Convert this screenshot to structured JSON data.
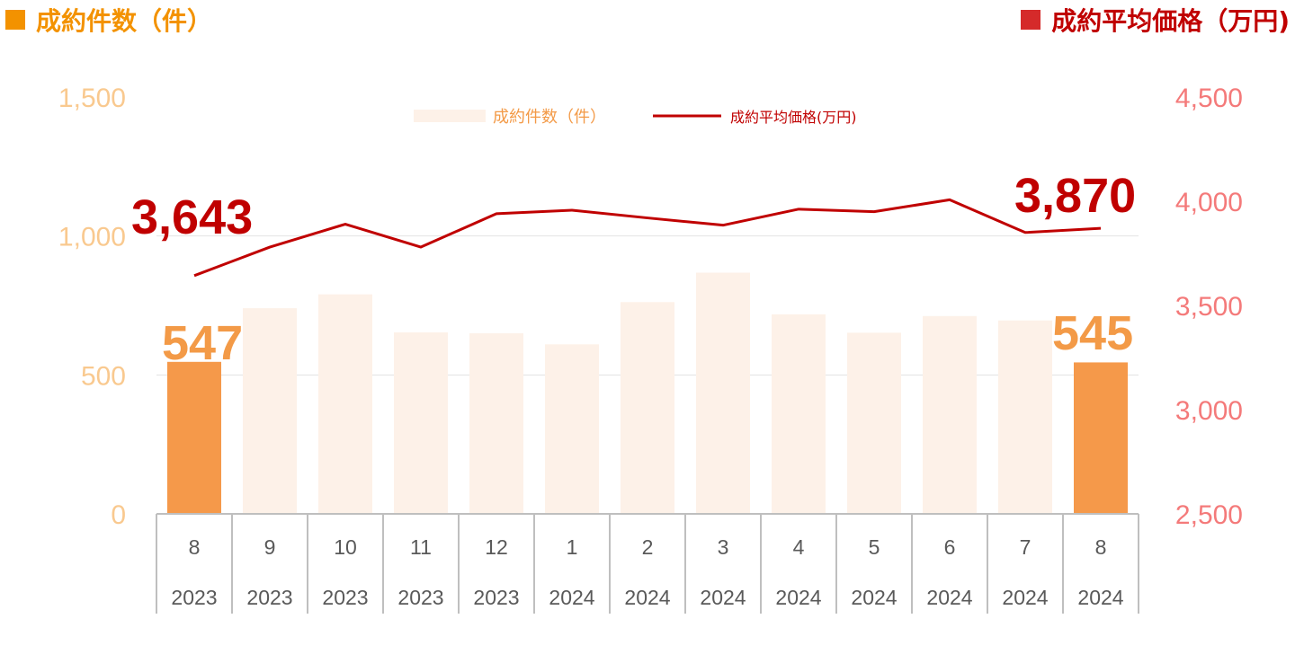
{
  "header": {
    "left_title": "成約件数（件）",
    "right_title": "成約平均価格（万円)",
    "left_color": "#f39200",
    "right_color": "#c00000"
  },
  "legend": {
    "bar_label": "成約件数（件）",
    "line_label": "成約平均価格(万円)"
  },
  "chart_data": {
    "type": "bar+line",
    "categories": [
      {
        "month": "8",
        "year": "2023"
      },
      {
        "month": "9",
        "year": "2023"
      },
      {
        "month": "10",
        "year": "2023"
      },
      {
        "month": "11",
        "year": "2023"
      },
      {
        "month": "12",
        "year": "2023"
      },
      {
        "month": "1",
        "year": "2024"
      },
      {
        "month": "2",
        "year": "2024"
      },
      {
        "month": "3",
        "year": "2024"
      },
      {
        "month": "4",
        "year": "2024"
      },
      {
        "month": "5",
        "year": "2024"
      },
      {
        "month": "6",
        "year": "2024"
      },
      {
        "month": "7",
        "year": "2024"
      },
      {
        "month": "8",
        "year": "2024"
      }
    ],
    "series": [
      {
        "name": "成約件数（件）",
        "type": "bar",
        "axis": "left",
        "values": [
          547,
          740,
          790,
          653,
          650,
          610,
          762,
          868,
          718,
          652,
          712,
          696,
          545
        ],
        "highlight_indices": [
          0,
          12
        ],
        "highlight_color": "#f5994a",
        "color": "#fdf1e8"
      },
      {
        "name": "成約平均価格(万円)",
        "type": "line",
        "axis": "right",
        "values": [
          3643,
          3780,
          3890,
          3780,
          3940,
          3957,
          3920,
          3885,
          3962,
          3950,
          4007,
          3850,
          3870
        ],
        "color": "#c00000"
      }
    ],
    "y_left": {
      "min": 0,
      "max": 1500,
      "ticks": [
        "0",
        "500",
        "1,000",
        "1,500"
      ]
    },
    "y_right": {
      "min": 2500,
      "max": 4500,
      "ticks": [
        "2,500",
        "3,000",
        "3,500",
        "4,000",
        "4,500"
      ]
    },
    "annotations": {
      "line_first": "3,643",
      "line_last": "3,870",
      "bar_first": "547",
      "bar_last": "545"
    },
    "grid": true,
    "legend_position": "top-center"
  }
}
